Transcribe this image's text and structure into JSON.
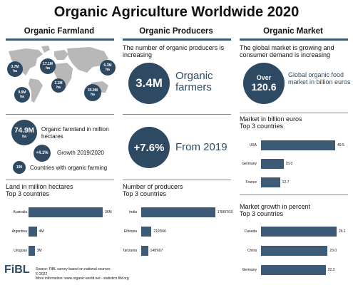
{
  "title": "Organic Agriculture Worldwide 2020",
  "columns": {
    "farmland": "Organic Farmland",
    "producers": "Organic Producers",
    "market": "Organic Market"
  },
  "map_pins": [
    {
      "value": "3.7M",
      "unit": "ha"
    },
    {
      "value": "17.1M",
      "unit": "ha"
    },
    {
      "value": "6.3M",
      "unit": "ha"
    },
    {
      "value": "2.1M",
      "unit": "ha"
    },
    {
      "value": "9.9M",
      "unit": "ha"
    },
    {
      "value": "35.9M",
      "unit": "ha"
    }
  ],
  "farmland_stats": {
    "area_value": "74.9M",
    "area_unit": "ha",
    "area_label": "Organic farmland in million hectares",
    "growth_value": "+4.1%",
    "growth_label": "Growth 2019/2020",
    "countries_value": "190",
    "countries_label": "Countries with organic farming"
  },
  "producers_intro": "The number of organic producers is increasing",
  "producers_big_value": "3.4M",
  "producers_big_label_1": "Organic",
  "producers_big_label_2": "farmers",
  "producers_growth_value": "+7.6%",
  "producers_growth_label": "From 2019",
  "market_intro": "The global market is growing and consumer demand is increasing",
  "market_big_over": "Over",
  "market_big_value": "120.6",
  "market_big_label": "Global organic food market in billion euros",
  "chart_data": [
    {
      "type": "bar",
      "title": "Land in million hectares",
      "subtitle": "Top 3 countries",
      "categories": [
        "Australia",
        "Argentina",
        "Uruguay"
      ],
      "values": [
        36,
        4,
        3
      ],
      "value_labels": [
        "36M",
        "4M",
        "3M"
      ],
      "xlim": [
        0,
        36
      ]
    },
    {
      "type": "bar",
      "title": "Number of producers",
      "subtitle": "Top 3 countries",
      "categories": [
        "India",
        "Ethiopia",
        "Tanzania"
      ],
      "values": [
        1599010,
        219566,
        148607
      ],
      "value_labels": [
        "1'599'010",
        "219'566",
        "148'607"
      ],
      "xlim": [
        0,
        1599010
      ]
    },
    {
      "type": "bar",
      "title": "Market in billion euros",
      "subtitle": "Top 3 countries",
      "categories": [
        "USA",
        "Germany",
        "France"
      ],
      "values": [
        49.5,
        15.0,
        12.7
      ],
      "value_labels": [
        "49.5",
        "15.0",
        "12.7"
      ],
      "xlim": [
        0,
        49.5
      ]
    },
    {
      "type": "bar",
      "title": "Market growth in percent",
      "subtitle": "Top 3 countries",
      "categories": [
        "Canada",
        "China",
        "Germany"
      ],
      "values": [
        26.1,
        23.0,
        22.3
      ],
      "value_labels": [
        "26.1",
        "23.0",
        "22.3"
      ],
      "xlim": [
        0,
        26.1
      ]
    }
  ],
  "footer": {
    "logo": "FiBL",
    "source": "Source: FiBL survey based on national sources",
    "copyright": "© 2022",
    "more": "More information: www.organic-world.net - statistics.fibl.org"
  },
  "colors": {
    "accent": "#2e4a63",
    "bar": "#3d5a76",
    "map": "#b8b8b8"
  }
}
